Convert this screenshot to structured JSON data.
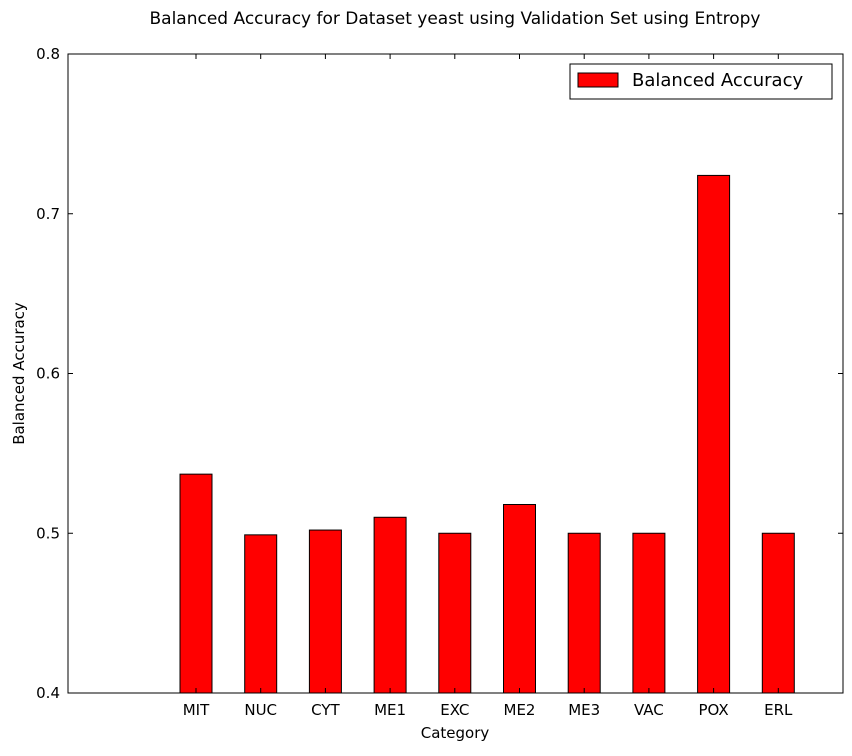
{
  "chart_data": {
    "type": "bar",
    "title": "Balanced Accuracy for Dataset yeast using Validation Set using Entropy",
    "xlabel": "Category",
    "ylabel": "Balanced Accuracy",
    "categories": [
      "MIT",
      "NUC",
      "CYT",
      "ME1",
      "EXC",
      "ME2",
      "ME3",
      "VAC",
      "POX",
      "ERL"
    ],
    "series": [
      {
        "name": "Balanced Accuracy",
        "values": [
          0.537,
          0.499,
          0.502,
          0.51,
          0.5,
          0.518,
          0.5,
          0.5,
          0.724,
          0.5
        ]
      }
    ],
    "ylim": [
      0.4,
      0.8
    ],
    "yticks": [
      "0.4",
      "0.5",
      "0.6",
      "0.7",
      "0.8"
    ],
    "grid": false,
    "legend_position": "top-right",
    "bar_color": "#ff0000",
    "edge_color": "#000000"
  }
}
